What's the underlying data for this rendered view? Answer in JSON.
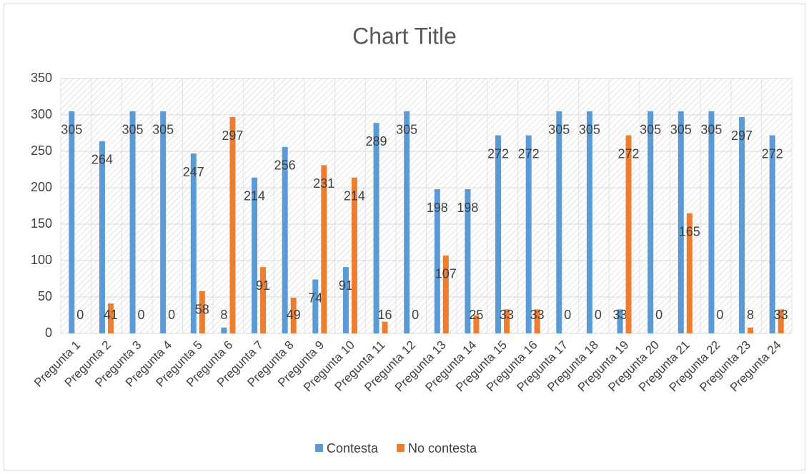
{
  "chart_data": {
    "type": "bar",
    "title": "Chart Title",
    "categories": [
      "Pregunta 1",
      "Pregunta 2",
      "Pregunta 3",
      "Pregunta 4",
      "Pregunta 5",
      "Pregunta 6",
      "Pregunta 7",
      "Pregunta 8",
      "Pregunta 9",
      "Pregunta 10",
      "Pregunta 11",
      "Pregunta 12",
      "Pregunta 13",
      "Pregunta 14",
      "Pregunta 15",
      "Pregunta 16",
      "Pregunta 17",
      "Pregunta 18",
      "Pregunta 19",
      "Pregunta 20",
      "Pregunta 21",
      "Pregunta 22",
      "Pregunta 23",
      "Pregunta 24"
    ],
    "series": [
      {
        "name": "Contesta",
        "color": "#5b9bd5",
        "values": [
          305,
          264,
          305,
          305,
          247,
          8,
          214,
          256,
          74,
          91,
          289,
          305,
          198,
          198,
          272,
          272,
          305,
          305,
          33,
          305,
          305,
          305,
          297,
          272
        ]
      },
      {
        "name": "No contesta",
        "color": "#ed7d31",
        "values": [
          0,
          41,
          0,
          0,
          58,
          297,
          91,
          49,
          231,
          214,
          16,
          0,
          107,
          25,
          33,
          33,
          0,
          0,
          272,
          0,
          165,
          0,
          8,
          33
        ]
      }
    ],
    "ylim": [
      0,
      350
    ],
    "yticks": [
      0,
      50,
      100,
      150,
      200,
      250,
      300,
      350
    ],
    "grid": true,
    "legend": "bottom"
  }
}
